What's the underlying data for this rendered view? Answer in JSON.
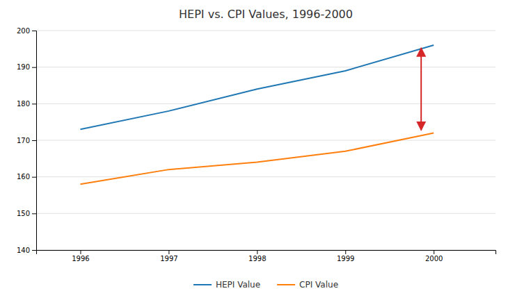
{
  "chart_data": {
    "type": "line",
    "title": "HEPI vs. CPI Values, 1996-2000",
    "x": [
      1996,
      1997,
      1998,
      1999,
      2000
    ],
    "series": [
      {
        "name": "HEPI Value",
        "values": [
          173,
          178,
          184,
          189,
          196
        ]
      },
      {
        "name": "CPI Value",
        "values": [
          158,
          162,
          164,
          167,
          172
        ]
      }
    ],
    "xlim": [
      1995.5,
      2000.7
    ],
    "xticks": [
      1996,
      1997,
      1998,
      1999,
      2000
    ],
    "ylim": [
      140,
      200
    ],
    "yticks": [
      140,
      150,
      160,
      170,
      180,
      190,
      200
    ],
    "grid": true,
    "legend": "bottom"
  }
}
